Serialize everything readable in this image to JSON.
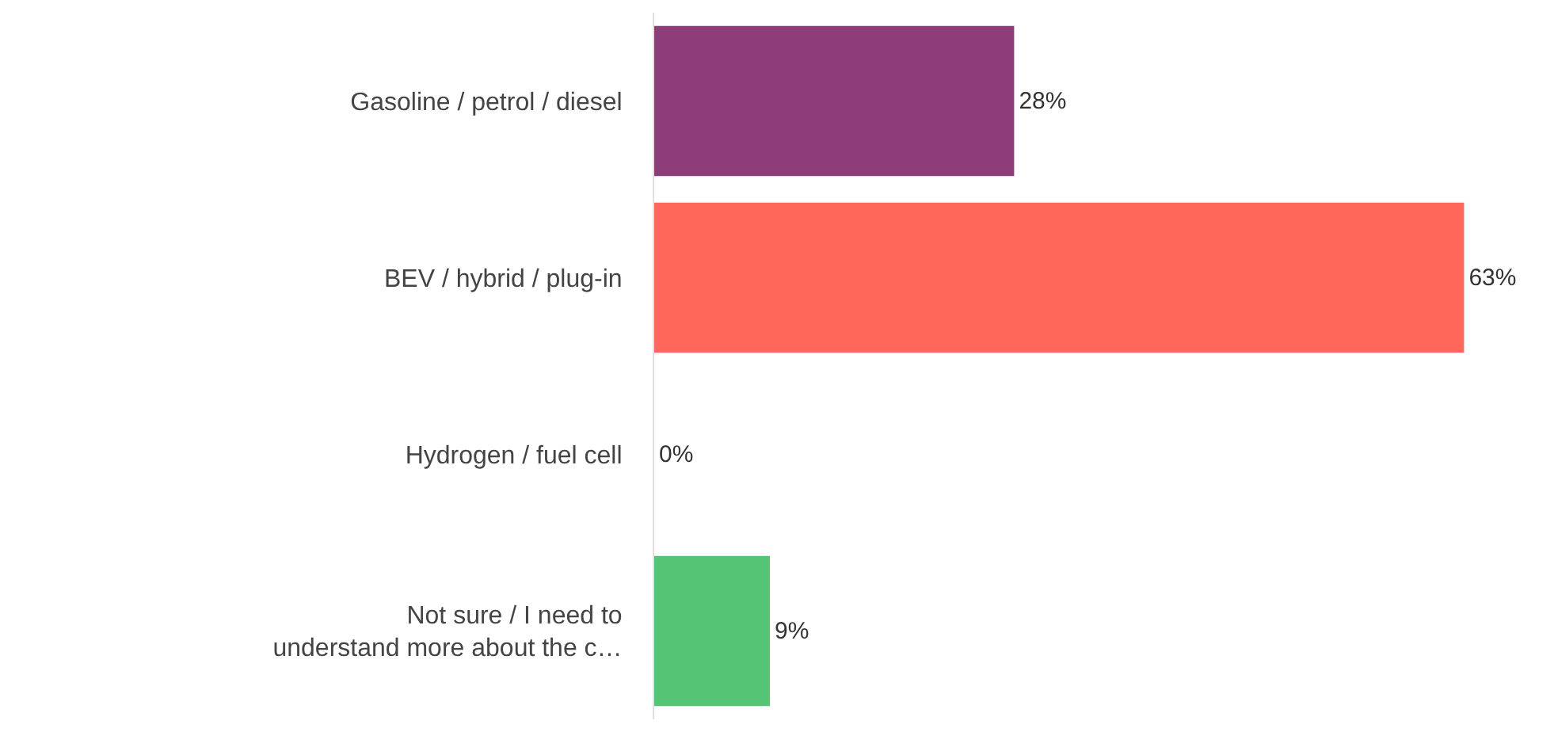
{
  "chart_data": {
    "type": "bar",
    "orientation": "horizontal",
    "categories": [
      "Gasoline / petrol / diesel",
      "BEV / hybrid / plug-in",
      "Hydrogen / fuel cell",
      "Not sure / I need to\nunderstand more about the c…"
    ],
    "values": [
      28,
      63,
      0,
      9
    ],
    "colors": [
      "#8f3d79",
      "#ff665c",
      "#f39c4f",
      "#55c474"
    ],
    "value_labels": [
      "28%",
      "63%",
      "0%",
      "9%"
    ],
    "xlim": [
      0,
      70
    ],
    "grid": false,
    "legend": false
  }
}
